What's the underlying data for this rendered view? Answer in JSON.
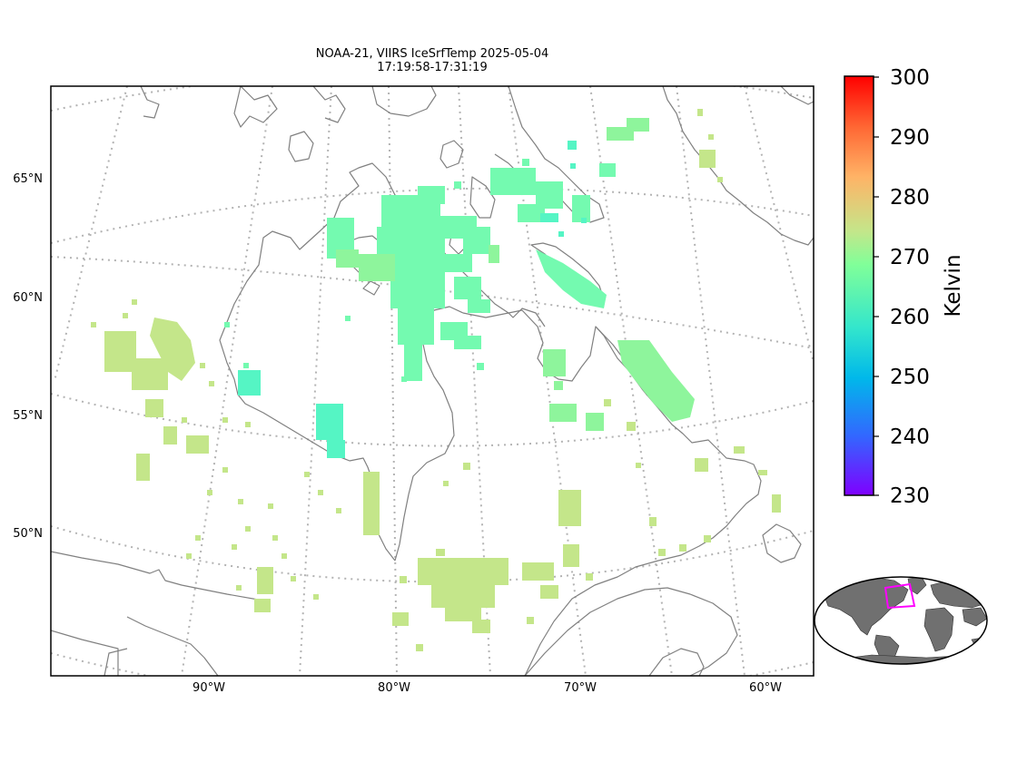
{
  "title": {
    "line1": "NOAA-21, VIIRS IceSrfTemp 2025-05-04",
    "line2": "17:19:58-17:31:19"
  },
  "map": {
    "lat_labels": [
      "65°N",
      "60°N",
      "55°N",
      "50°N"
    ],
    "lon_labels": [
      "90°W",
      "80°W",
      "70°W",
      "60°W"
    ]
  },
  "colorbar": {
    "label": "Kelvin",
    "ticks": [
      "300",
      "290",
      "280",
      "270",
      "260",
      "250",
      "240",
      "230"
    ],
    "min": 230,
    "max": 300,
    "stops": [
      "#7f00ff",
      "#3366ff",
      "#00b8ea",
      "#33e6cc",
      "#80ff99",
      "#c4e68a",
      "#ffb366",
      "#ff6633",
      "#ff0000"
    ]
  },
  "colors": {
    "coastline": "#808080",
    "grid": "#b3b3b3",
    "pixel_light_green": "#c4e68a",
    "pixel_green": "#8ef59c",
    "pixel_aqua": "#74fab0",
    "pixel_teal": "#55f5c4",
    "inset_land": "#707070",
    "inset_box": "#ff00ff"
  }
}
